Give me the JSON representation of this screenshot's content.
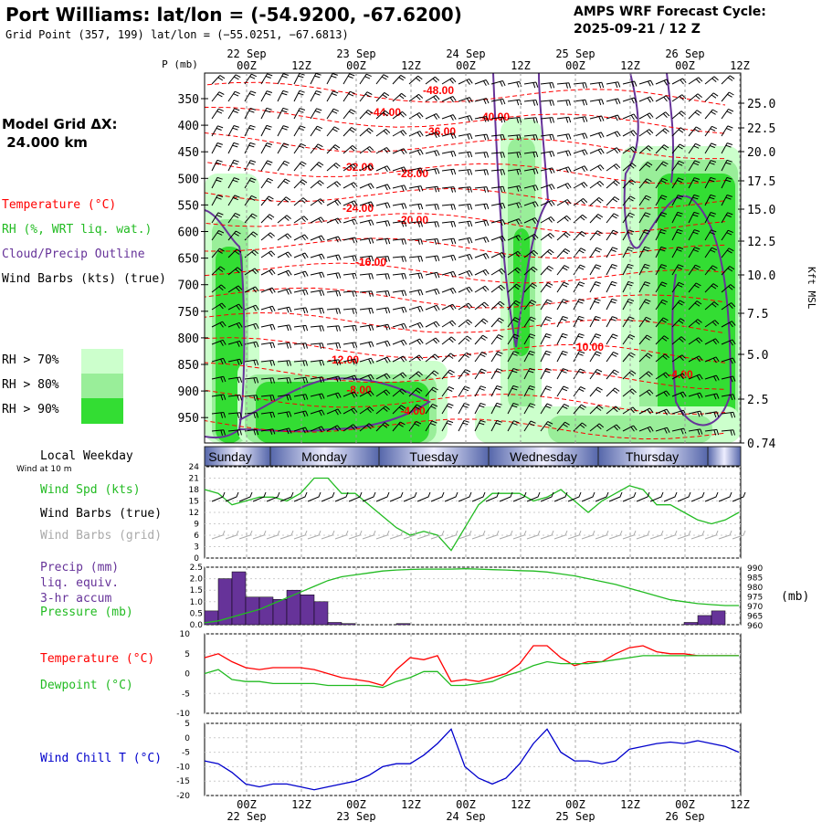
{
  "header": {
    "title": "Port Williams:  lat/lon = (-54.9200, -67.6200)",
    "subtitle": "Grid Point (357, 199) lat/lon = (−55.0251, −67.6813)",
    "cycle_line1": "AMPS WRF Forecast Cycle:",
    "cycle_line2": "2025-09-21 / 12  Z",
    "grid_line1": "Model Grid ΔX:",
    "grid_line2": " 24.000 km"
  },
  "time_axis": {
    "tick_labels": [
      "00Z",
      "12Z",
      "00Z",
      "12Z",
      "00Z",
      "12Z",
      "00Z",
      "12Z",
      "00Z",
      "12Z"
    ],
    "day_labels": [
      "22 Sep",
      "23 Sep",
      "24 Sep",
      "25 Sep",
      "26 Sep"
    ]
  },
  "sounding_panel": {
    "p_label": "P (mb)",
    "pressure_ticks": [
      "350",
      "400",
      "450",
      "500",
      "550",
      "600",
      "650",
      "700",
      "750",
      "800",
      "850",
      "900",
      "950"
    ],
    "height_ticks": [
      "25.0",
      "22.5",
      "20.0",
      "17.5",
      "15.0",
      "12.5",
      "10.0",
      "7.5",
      "5.0",
      "2.5",
      "0.74"
    ],
    "height_axis_label": "Kft MSL",
    "legend": {
      "temperature": "Temperature (°C)",
      "rh": "RH (%, WRT liq. wat.)",
      "cloud": "Cloud/Precip Outline",
      "barbs": "Wind Barbs (kts) (true)",
      "rh70": "RH > 70%",
      "rh80": "RH > 80%",
      "rh90": "RH > 90%"
    },
    "temperature_labels": [
      "-48.00",
      "-44.00",
      "-40.00",
      "-36.00",
      "-32.00",
      "-28.00",
      "-24.00",
      "-20.00",
      "-16.00",
      "-12.00",
      "-8.00",
      "-4.00",
      "-10.00",
      "-4.00"
    ],
    "colors": {
      "temperature": "#ff0000",
      "rh70": "#ccffcc",
      "rh80": "#99ee99",
      "rh90": "#33dd33",
      "cloud": "#663399"
    }
  },
  "weekday_bar": {
    "label": "Local Weekday",
    "days": [
      "Sunday",
      "Monday",
      "Tuesday",
      "Wednesday",
      "Thursday"
    ]
  },
  "wind_panel": {
    "note": "Wind at 10 m",
    "label_speed": "Wind Spd (kts)",
    "label_barbs_true": "Wind Barbs (true)",
    "label_barbs_grid": "Wind Barbs (grid)",
    "y_ticks": [
      "24",
      "21",
      "18",
      "15",
      "12",
      "9",
      "6",
      "3",
      "0"
    ]
  },
  "precip_panel": {
    "label_precip_1": "Precip (mm)",
    "label_precip_2": "liq. equiv.",
    "label_precip_3": "3-hr accum",
    "label_pressure": "Pressure (mb)",
    "left_ticks": [
      "2.5",
      "2.0",
      "1.5",
      "1.0",
      "0.5",
      "0.0"
    ],
    "right_ticks": [
      "990",
      "985",
      "980",
      "975",
      "970",
      "965",
      "960"
    ],
    "right_unit": "(mb)"
  },
  "temp_panel": {
    "label_temp": "Temperature (°C)",
    "label_dew": "Dewpoint (°C)",
    "y_ticks": [
      "10",
      "5",
      "0",
      "-5",
      "-10"
    ]
  },
  "chill_panel": {
    "label": "Wind Chill T (°C)",
    "y_ticks": [
      "5",
      "0",
      "-5",
      "-10",
      "-15",
      "-20"
    ]
  },
  "chart_data": [
    {
      "type": "line",
      "title": "Wind Spd (kts)",
      "x_hours": [
        0,
        3,
        6,
        9,
        12,
        15,
        18,
        21,
        24,
        27,
        30,
        33,
        36,
        39,
        42,
        45,
        48,
        51,
        54,
        57,
        60,
        63,
        66,
        69,
        72,
        75,
        78,
        81,
        84,
        87,
        90,
        93,
        96,
        99,
        102,
        105,
        108,
        111,
        114,
        117
      ],
      "series": [
        {
          "name": "Wind Spd (kts)",
          "color": "#22bb22",
          "values": [
            18,
            17,
            14,
            15,
            16,
            16,
            15,
            17,
            21,
            21,
            17,
            17,
            14,
            11,
            8,
            6,
            7,
            6,
            2,
            8,
            14,
            17,
            17,
            17,
            15,
            16,
            18,
            15,
            12,
            15,
            17,
            19,
            18,
            14,
            14,
            12,
            10,
            9,
            10,
            12
          ]
        }
      ],
      "ylim": [
        0,
        24
      ]
    },
    {
      "type": "bar",
      "title": "Precip (mm) liq. equiv. 3-hr accum",
      "x_hours": [
        0,
        3,
        6,
        9,
        12,
        15,
        18,
        21,
        24,
        27,
        30,
        33,
        36,
        39,
        42,
        45,
        48,
        51,
        54,
        57,
        60,
        63,
        66,
        69,
        72,
        75,
        78,
        81,
        84,
        87,
        90,
        93,
        96,
        99,
        102,
        105,
        108,
        111,
        114,
        117
      ],
      "values": [
        0.6,
        2.0,
        2.3,
        1.2,
        1.2,
        1.1,
        1.5,
        1.3,
        1.0,
        0.1,
        0.05,
        0,
        0,
        0,
        0.05,
        0,
        0,
        0,
        0,
        0,
        0,
        0,
        0,
        0,
        0,
        0,
        0,
        0,
        0,
        0,
        0,
        0,
        0,
        0,
        0,
        0.1,
        0.4,
        0.6,
        0,
        0
      ],
      "color": "#663399",
      "ylim": [
        0,
        2.5
      ]
    },
    {
      "type": "line",
      "title": "Pressure (mb)",
      "x_hours": [
        0,
        3,
        6,
        9,
        12,
        15,
        18,
        21,
        24,
        27,
        30,
        33,
        36,
        39,
        42,
        45,
        48,
        51,
        54,
        57,
        60,
        63,
        66,
        69,
        72,
        75,
        78,
        81,
        84,
        87,
        90,
        93,
        96,
        99,
        102,
        105,
        108,
        111,
        114,
        117
      ],
      "series": [
        {
          "name": "Pressure (mb)",
          "color": "#22bb22",
          "values": [
            961,
            962,
            964,
            966,
            968,
            971,
            974,
            977,
            980,
            983,
            985,
            986,
            987,
            988,
            988.5,
            988.8,
            989,
            989,
            989,
            989.2,
            989,
            988.7,
            988.5,
            988.2,
            988,
            987.5,
            986.5,
            985.5,
            984,
            982.5,
            981,
            979,
            977,
            975,
            973,
            972,
            971,
            970.5,
            970,
            970
          ]
        }
      ],
      "ylim": [
        960,
        990
      ]
    },
    {
      "type": "line",
      "title": "Temperature / Dewpoint (°C)",
      "x_hours": [
        0,
        3,
        6,
        9,
        12,
        15,
        18,
        21,
        24,
        27,
        30,
        33,
        36,
        39,
        42,
        45,
        48,
        51,
        54,
        57,
        60,
        63,
        66,
        69,
        72,
        75,
        78,
        81,
        84,
        87,
        90,
        93,
        96,
        99,
        102,
        105,
        108,
        111,
        114,
        117
      ],
      "series": [
        {
          "name": "Temperature (°C)",
          "color": "#ff0000",
          "values": [
            4,
            5,
            3,
            1.5,
            1,
            1.5,
            1.5,
            1.5,
            1,
            0,
            -1,
            -1.5,
            -2,
            -3,
            1,
            4,
            3.5,
            4.5,
            -2,
            -1.5,
            -2,
            -1,
            0,
            2.5,
            7,
            7,
            4,
            2,
            3,
            3,
            5,
            6.5,
            7,
            5.5,
            5,
            5,
            4.5,
            4.5,
            4.5,
            4.5
          ]
        },
        {
          "name": "Dewpoint (°C)",
          "color": "#22bb22",
          "values": [
            0,
            1,
            -1.5,
            -2,
            -2,
            -2.5,
            -2.5,
            -2.5,
            -2.5,
            -3,
            -3,
            -3,
            -3,
            -3.5,
            -2,
            -1,
            0.5,
            0.5,
            -3,
            -3,
            -2.5,
            -2,
            -0.5,
            0.5,
            2,
            3,
            2.5,
            2.5,
            2.5,
            3,
            3.5,
            4,
            4.5,
            4.5,
            4.5,
            4.5,
            4.5,
            4.5,
            4.5,
            4.5
          ]
        }
      ],
      "ylim": [
        -10,
        10
      ]
    },
    {
      "type": "line",
      "title": "Wind Chill T (°C)",
      "x_hours": [
        0,
        3,
        6,
        9,
        12,
        15,
        18,
        21,
        24,
        27,
        30,
        33,
        36,
        39,
        42,
        45,
        48,
        51,
        54,
        57,
        60,
        63,
        66,
        69,
        72,
        75,
        78,
        81,
        84,
        87,
        90,
        93,
        96,
        99,
        102,
        105,
        108,
        111,
        114,
        117
      ],
      "series": [
        {
          "name": "Wind Chill T (°C)",
          "color": "#0000cc",
          "values": [
            -8,
            -9,
            -12,
            -16,
            -17,
            -16,
            -16,
            -17,
            -18,
            -17,
            -16,
            -15,
            -13,
            -10,
            -9,
            -9,
            -6,
            -2,
            3,
            -10,
            -14,
            -16,
            -14,
            -9,
            -2,
            3,
            -5,
            -8,
            -8,
            -9,
            -8,
            -4,
            -3,
            -2,
            -1.5,
            -2,
            -1,
            -2,
            -3,
            -5
          ]
        }
      ],
      "ylim": [
        -20,
        5
      ]
    }
  ]
}
